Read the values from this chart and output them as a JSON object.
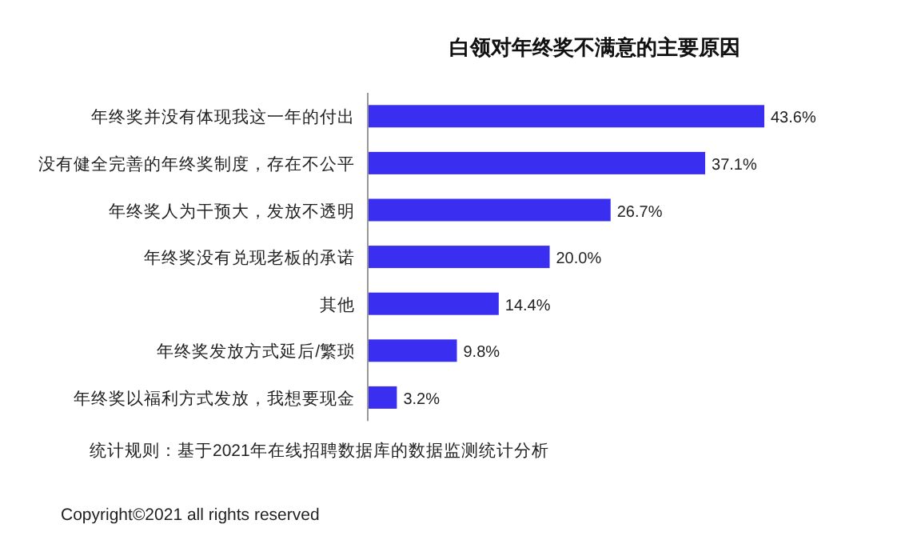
{
  "chart_data": {
    "type": "bar",
    "orientation": "horizontal",
    "title": "白领对年终奖不满意的主要原因",
    "categories": [
      "年终奖并没有体现我这一年的付出",
      "没有健全完善的年终奖制度，存在不公平",
      "年终奖人为干预大，发放不透明",
      "年终奖没有兑现老板的承诺",
      "其他",
      "年终奖发放方式延后/繁琐",
      "年终奖以福利方式发放，我想要现金"
    ],
    "values": [
      43.6,
      37.1,
      26.7,
      20.0,
      14.4,
      9.8,
      3.2
    ],
    "value_labels": [
      "43.6%",
      "37.1%",
      "26.7%",
      "20.0%",
      "14.4%",
      "9.8%",
      "3.2%"
    ],
    "color": "#3a2ff0",
    "annotations": [
      "统计规则：基于2021年在线招聘数据库的数据监测统计分析",
      "Copyright©2021 all rights reserved"
    ]
  }
}
